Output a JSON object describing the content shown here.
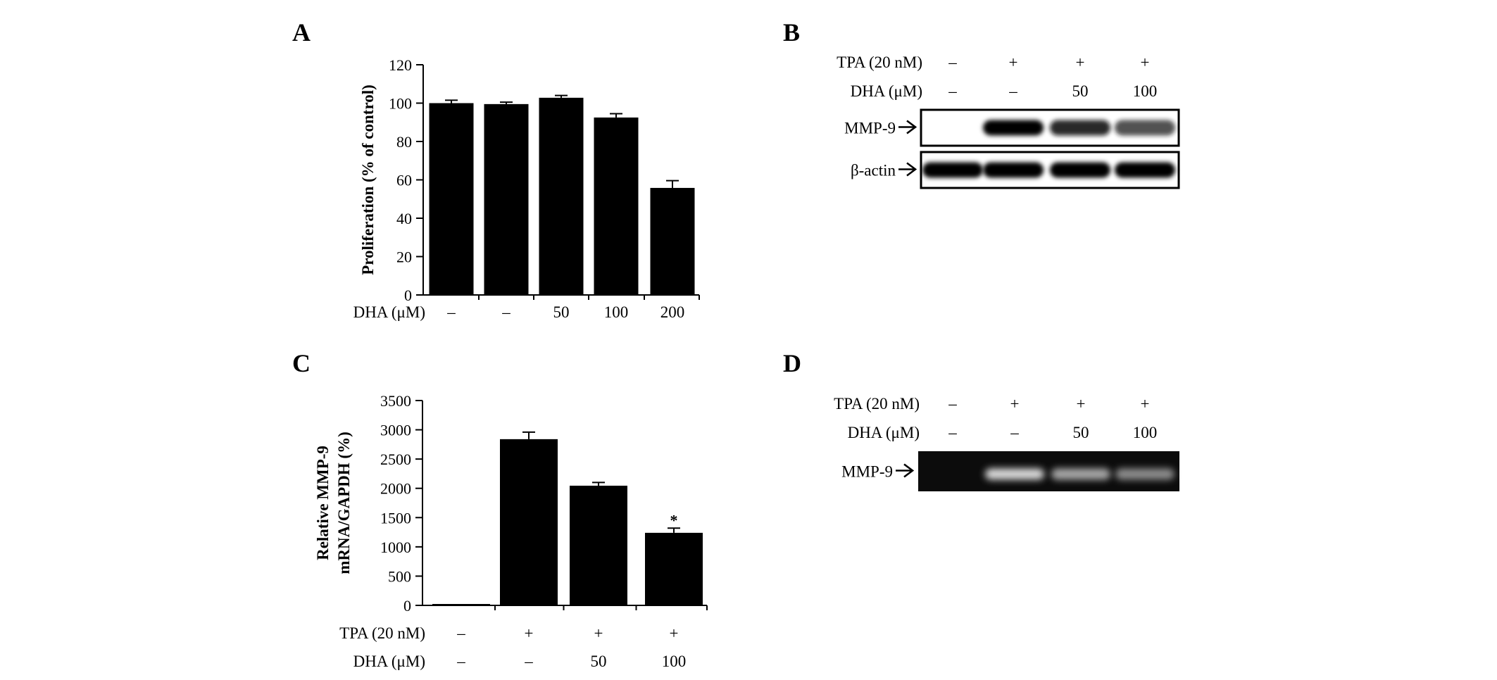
{
  "panels": {
    "A": "A",
    "B": "B",
    "C": "C",
    "D": "D"
  },
  "chart_data": [
    {
      "panel": "A",
      "type": "bar",
      "ylabel": "Proliferation  (% of control)",
      "ylim": [
        0,
        120
      ],
      "yticks": [
        "0",
        "20",
        "40",
        "60",
        "80",
        "100",
        "120"
      ],
      "row_labels": [
        "DHA (μM)"
      ],
      "categories": [
        [
          "–"
        ],
        [
          "–"
        ],
        [
          "50"
        ],
        [
          "100"
        ],
        [
          "200"
        ]
      ],
      "values": [
        100,
        99.5,
        102.8,
        92.5,
        55.8
      ],
      "errors": [
        1.5,
        1.0,
        1.2,
        2.0,
        3.8
      ],
      "annotations": [
        "",
        "",
        "",
        "",
        ""
      ]
    },
    {
      "panel": "C",
      "type": "bar",
      "ylabel": "Relative MMP-9\nmRNA/GAPDH  (%)",
      "ylim": [
        0,
        3500
      ],
      "yticks": [
        "0",
        "500",
        "1000",
        "1500",
        "2000",
        "2500",
        "3000",
        "3500"
      ],
      "row_labels": [
        "TPA (20 nM)",
        "DHA (μM)"
      ],
      "categories": [
        [
          "–",
          "–"
        ],
        [
          "+",
          "–"
        ],
        [
          "+",
          "50"
        ],
        [
          "+",
          "100"
        ]
      ],
      "values": [
        0,
        2840,
        2045,
        1240
      ],
      "errors": [
        0,
        120,
        55,
        80
      ],
      "annotations": [
        "",
        "",
        "",
        "*"
      ]
    }
  ],
  "blots": {
    "B": {
      "row_labels": [
        "TPA (20 nM)",
        "DHA (μM)"
      ],
      "lanes": [
        [
          "–",
          "–"
        ],
        [
          "+",
          "–"
        ],
        [
          "+",
          "50"
        ],
        [
          "+",
          "100"
        ]
      ],
      "bands": [
        {
          "label": "MMP-9",
          "intensities": [
            0.0,
            1.0,
            0.82,
            0.6
          ]
        },
        {
          "label": "β-actin",
          "intensities": [
            1.0,
            1.0,
            1.0,
            1.0
          ]
        }
      ]
    },
    "D": {
      "row_labels": [
        "TPA (20 nM)",
        "DHA (μM)"
      ],
      "lanes": [
        [
          "–",
          "–"
        ],
        [
          "+",
          "–"
        ],
        [
          "+",
          "50"
        ],
        [
          "+",
          "100"
        ]
      ],
      "bands": [
        {
          "label": "MMP-9",
          "intensities": [
            0.0,
            1.0,
            0.75,
            0.6
          ]
        }
      ]
    }
  }
}
